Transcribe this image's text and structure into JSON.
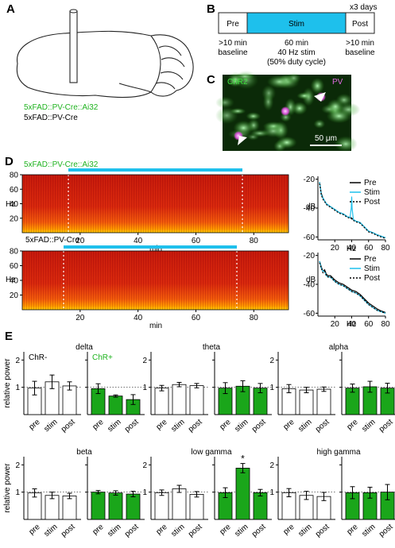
{
  "panels": {
    "A": {
      "letter": "A",
      "genotype_green": "5xFAD::PV-Cre::Ai32",
      "genotype_black": "5xFAD::PV-Cre"
    },
    "B": {
      "letter": "B",
      "repeat": "x3 days",
      "phases": [
        "Pre",
        "Stim",
        "Post"
      ],
      "desc_left": [
        ">10 min",
        "baseline"
      ],
      "desc_mid": [
        "60 min",
        "40 Hz stim",
        "(50% duty cycle)"
      ],
      "desc_right": [
        ">10 min",
        "baseline"
      ]
    },
    "C": {
      "letter": "C",
      "label_green": "ChR2",
      "label_magenta": "PV",
      "scale": "50 μm"
    },
    "D": {
      "letter": "D",
      "spectrogram_top_title": "5xFAD::PV-Cre::Ai32",
      "spectrogram_bottom_title": "5xFAD::PV-Cre",
      "ylabel": "Hz",
      "xlabel": "min",
      "yticks": [
        "80",
        "60",
        "40",
        "20"
      ],
      "xticks": [
        "20",
        "40",
        "60",
        "80"
      ],
      "psd_ylabel": "dB",
      "psd_xlabel": "Hz",
      "psd_yticks": [
        "-20",
        "-40",
        "-60"
      ],
      "psd_xticks": [
        "20",
        "40",
        "60",
        "80"
      ],
      "legend": [
        "Pre",
        "Stim",
        "Post"
      ]
    },
    "E": {
      "letter": "E",
      "ylabel": "relative power",
      "yticks": [
        "1",
        "2"
      ],
      "categories": [
        "pre",
        "stim",
        "post"
      ],
      "group_labels": [
        "ChR-",
        "ChR+"
      ]
    }
  },
  "colors": {
    "green": "#1fb31f",
    "bar_green": "#1aa61a",
    "cyan": "#1ec0ec",
    "magenta": "#d14fd1"
  },
  "chart_data": [
    {
      "type": "line",
      "title": "",
      "xlabel": "Hz",
      "ylabel": "dB",
      "xlim": [
        0,
        80
      ],
      "ylim": [
        -62,
        -18
      ],
      "series": [
        {
          "name": "Pre",
          "x": [
            2,
            4,
            6,
            8,
            10,
            15,
            20,
            25,
            30,
            35,
            38,
            40,
            42,
            45,
            50,
            55,
            60,
            65,
            70,
            75,
            80
          ],
          "y": [
            -22,
            -30,
            -33,
            -35,
            -37,
            -39,
            -41,
            -43,
            -44,
            -46,
            -46.5,
            -47,
            -48,
            -49,
            -50,
            -53,
            -56,
            -57,
            -58.5,
            -59.5,
            -60.5
          ]
        },
        {
          "name": "Stim",
          "x": [
            2,
            4,
            6,
            8,
            10,
            15,
            20,
            25,
            30,
            35,
            38,
            39.5,
            40,
            40.5,
            42,
            45,
            50,
            55,
            60,
            65,
            70,
            75,
            80
          ],
          "y": [
            -22,
            -31,
            -33,
            -35,
            -37,
            -39,
            -41,
            -43,
            -44,
            -46,
            -46.5,
            -40,
            -32,
            -40,
            -48,
            -49,
            -50,
            -53,
            -56,
            -57,
            -58.5,
            -59.5,
            -60.5
          ]
        },
        {
          "name": "Post",
          "x": [
            2,
            4,
            6,
            8,
            10,
            15,
            20,
            25,
            30,
            35,
            38,
            40,
            42,
            45,
            50,
            55,
            60,
            65,
            70,
            75,
            80
          ],
          "y": [
            -23,
            -31,
            -34,
            -35.5,
            -37.5,
            -39.5,
            -41.5,
            -43.5,
            -44.5,
            -46.5,
            -47,
            -47.5,
            -48.5,
            -49.5,
            -50.5,
            -53.5,
            -56.5,
            -57.5,
            -59,
            -60,
            -61
          ]
        }
      ]
    },
    {
      "type": "line",
      "title": "",
      "xlabel": "Hz",
      "ylabel": "dB",
      "xlim": [
        0,
        80
      ],
      "ylim": [
        -62,
        -18
      ],
      "series": [
        {
          "name": "Pre",
          "x": [
            2,
            4,
            6,
            8,
            10,
            12,
            15,
            20,
            25,
            30,
            35,
            40,
            45,
            50,
            55,
            60,
            65,
            70,
            75,
            80
          ],
          "y": [
            -24,
            -28,
            -31,
            -30,
            -33,
            -34,
            -34,
            -37,
            -39,
            -40,
            -42,
            -44,
            -45,
            -47,
            -50,
            -53,
            -55,
            -57,
            -58.5,
            -59.5
          ]
        },
        {
          "name": "Stim",
          "x": [
            2,
            4,
            6,
            8,
            10,
            12,
            15,
            20,
            25,
            30,
            35,
            40,
            45,
            50,
            55,
            60,
            65,
            70,
            75,
            80
          ],
          "y": [
            -24,
            -29,
            -31,
            -31,
            -34,
            -35,
            -35,
            -38,
            -40,
            -41,
            -43,
            -45,
            -46,
            -48,
            -51,
            -54,
            -56,
            -58,
            -59,
            -60
          ]
        },
        {
          "name": "Post",
          "x": [
            2,
            4,
            6,
            8,
            10,
            12,
            15,
            20,
            25,
            30,
            35,
            40,
            45,
            50,
            55,
            60,
            65,
            70,
            75,
            80
          ],
          "y": [
            -25,
            -29,
            -32,
            -31,
            -34,
            -35,
            -35,
            -38,
            -40,
            -41,
            -43,
            -45,
            -46,
            -48,
            -51,
            -54,
            -56,
            -58,
            -59,
            -60
          ]
        }
      ]
    },
    {
      "type": "bar",
      "title": "delta",
      "ylim": [
        0,
        2.3
      ],
      "categories": [
        "pre",
        "stim",
        "post"
      ],
      "series": [
        {
          "name": "ChR-",
          "values": [
            0.97,
            1.2,
            1.05
          ],
          "errors": [
            0.25,
            0.25,
            0.15
          ]
        },
        {
          "name": "ChR+",
          "values": [
            0.95,
            0.68,
            0.55
          ],
          "errors": [
            0.18,
            0.04,
            0.18
          ]
        }
      ]
    },
    {
      "type": "bar",
      "title": "theta",
      "ylim": [
        0,
        2.3
      ],
      "categories": [
        "pre",
        "stim",
        "post"
      ],
      "series": [
        {
          "values": [
            0.97,
            1.1,
            1.06
          ],
          "errors": [
            0.1,
            0.08,
            0.08
          ]
        },
        {
          "values": [
            0.97,
            1.04,
            0.97
          ],
          "errors": [
            0.2,
            0.2,
            0.17
          ]
        }
      ]
    },
    {
      "type": "bar",
      "title": "alpha",
      "ylim": [
        0,
        2.3
      ],
      "categories": [
        "pre",
        "stim",
        "post"
      ],
      "series": [
        {
          "values": [
            0.95,
            0.9,
            0.93
          ],
          "errors": [
            0.15,
            0.1,
            0.08
          ]
        },
        {
          "values": [
            0.97,
            1.02,
            0.97
          ],
          "errors": [
            0.15,
            0.2,
            0.18
          ]
        }
      ]
    },
    {
      "type": "bar",
      "title": "beta",
      "ylim": [
        0,
        2.3
      ],
      "categories": [
        "pre",
        "stim",
        "post"
      ],
      "series": [
        {
          "values": [
            0.97,
            0.88,
            0.86
          ],
          "errors": [
            0.15,
            0.12,
            0.1
          ]
        },
        {
          "values": [
            1.0,
            0.97,
            0.93
          ],
          "errors": [
            0.06,
            0.08,
            0.1
          ]
        }
      ]
    },
    {
      "type": "bar",
      "title": "low gamma",
      "ylim": [
        0,
        2.3
      ],
      "categories": [
        "pre",
        "stim",
        "post"
      ],
      "annotation": "*",
      "series": [
        {
          "values": [
            0.98,
            1.12,
            0.92
          ],
          "errors": [
            0.1,
            0.13,
            0.1
          ]
        },
        {
          "values": [
            0.98,
            1.88,
            0.98
          ],
          "errors": [
            0.18,
            0.17,
            0.12
          ]
        }
      ]
    },
    {
      "type": "bar",
      "title": "high gamma",
      "ylim": [
        0,
        2.3
      ],
      "categories": [
        "pre",
        "stim",
        "post"
      ],
      "series": [
        {
          "values": [
            0.98,
            0.88,
            0.84
          ],
          "errors": [
            0.15,
            0.15,
            0.15
          ]
        },
        {
          "values": [
            0.98,
            0.98,
            1.0
          ],
          "errors": [
            0.22,
            0.2,
            0.28
          ]
        }
      ]
    }
  ]
}
